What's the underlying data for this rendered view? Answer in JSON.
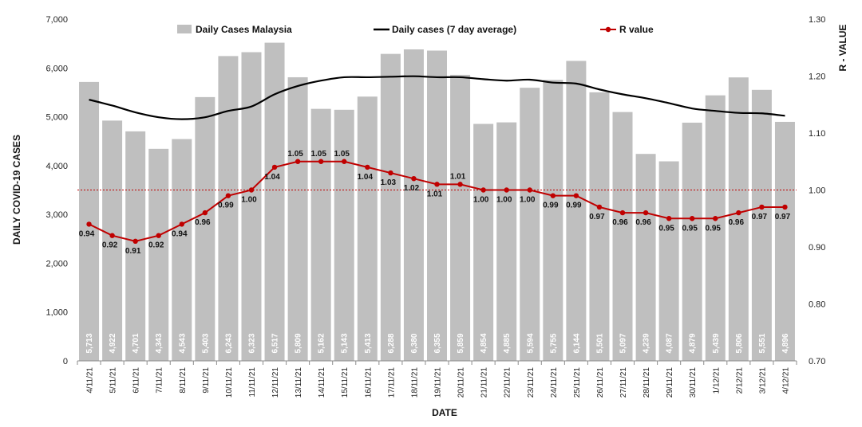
{
  "chart_data": {
    "type": "bar",
    "categories": [
      "4/11/21",
      "5/11/21",
      "6/11/21",
      "7/11/21",
      "8/11/21",
      "9/11/21",
      "10/11/21",
      "11/11/21",
      "12/11/21",
      "13/11/21",
      "14/11/21",
      "15/11/21",
      "16/11/21",
      "17/11/21",
      "18/11/21",
      "19/11/21",
      "20/11/21",
      "21/11/21",
      "22/11/21",
      "23/11/21",
      "24/11/21",
      "25/11/21",
      "26/11/21",
      "27/11/21",
      "28/11/21",
      "29/11/21",
      "30/11/21",
      "1/12/21",
      "2/12/21",
      "3/12/21",
      "4/12/21"
    ],
    "series": [
      {
        "name": "Daily Cases Malaysia",
        "type": "bar",
        "axis": "left",
        "color": "#bfbfbf",
        "values": [
          5713,
          4922,
          4701,
          4343,
          4543,
          5403,
          6243,
          6323,
          6517,
          5809,
          5162,
          5143,
          5413,
          6288,
          6380,
          6355,
          5859,
          4854,
          4885,
          5594,
          5755,
          6144,
          5501,
          5097,
          4239,
          4087,
          4879,
          5439,
          5806,
          5551,
          4896
        ],
        "labels": [
          "5,713",
          "4,922",
          "4,701",
          "4,343",
          "4,543",
          "5,403",
          "6,243",
          "6,323",
          "6,517",
          "5,809",
          "5,162",
          "5,143",
          "5,413",
          "6,288",
          "6,380",
          "6,355",
          "5,859",
          "4,854",
          "4,885",
          "5,594",
          "5,755",
          "6,144",
          "5,501",
          "5,097",
          "4,239",
          "4,087",
          "4,879",
          "5,439",
          "5,806",
          "5,551",
          "4,896"
        ]
      },
      {
        "name": "Daily cases (7 day average)",
        "type": "line",
        "axis": "left",
        "color": "#000000",
        "values": [
          5350,
          5230,
          5090,
          4990,
          4950,
          4990,
          5120,
          5210,
          5460,
          5630,
          5740,
          5810,
          5810,
          5820,
          5830,
          5810,
          5810,
          5770,
          5740,
          5760,
          5700,
          5680,
          5560,
          5460,
          5380,
          5280,
          5170,
          5120,
          5080,
          5070,
          5020
        ]
      },
      {
        "name": "R value",
        "type": "line",
        "axis": "right",
        "color": "#c00000",
        "values": [
          0.94,
          0.92,
          0.91,
          0.92,
          0.94,
          0.96,
          0.99,
          1.0,
          1.04,
          1.05,
          1.05,
          1.05,
          1.04,
          1.03,
          1.02,
          1.01,
          1.01,
          1.0,
          1.0,
          1.0,
          0.99,
          0.99,
          0.97,
          0.96,
          0.96,
          0.95,
          0.95,
          0.95,
          0.96,
          0.97,
          0.97
        ],
        "labels": [
          "0.94",
          "0.92",
          "0.91",
          "0.92",
          "0.94",
          "0.96",
          "0.99",
          "1.00",
          "1.04",
          "1.05",
          "1.05",
          "1.05",
          "1.04",
          "1.03",
          "1.02",
          "1.01",
          "1.01",
          "1.00",
          "1.00",
          "1.00",
          "0.99",
          "0.99",
          "0.97",
          "0.96",
          "0.96",
          "0.95",
          "0.95",
          "0.95",
          "0.96",
          "0.97",
          "0.97"
        ]
      }
    ],
    "reference_line": {
      "axis": "right",
      "value": 1.0,
      "color": "#c00000",
      "style": "dotted"
    },
    "xlabel": "DATE",
    "ylabel": "DAILY COVID-19 CASES",
    "y2label": "R - VALUE",
    "ylim": [
      0,
      7000
    ],
    "y2lim": [
      0.7,
      1.3
    ],
    "yticks": [
      "0",
      "1,000",
      "2,000",
      "3,000",
      "4,000",
      "5,000",
      "6,000",
      "7,000"
    ],
    "y2ticks": [
      "0.70",
      "0.80",
      "0.90",
      "1.00",
      "1.10",
      "1.20",
      "1.30"
    ],
    "grid": false,
    "legend_position": "top"
  }
}
